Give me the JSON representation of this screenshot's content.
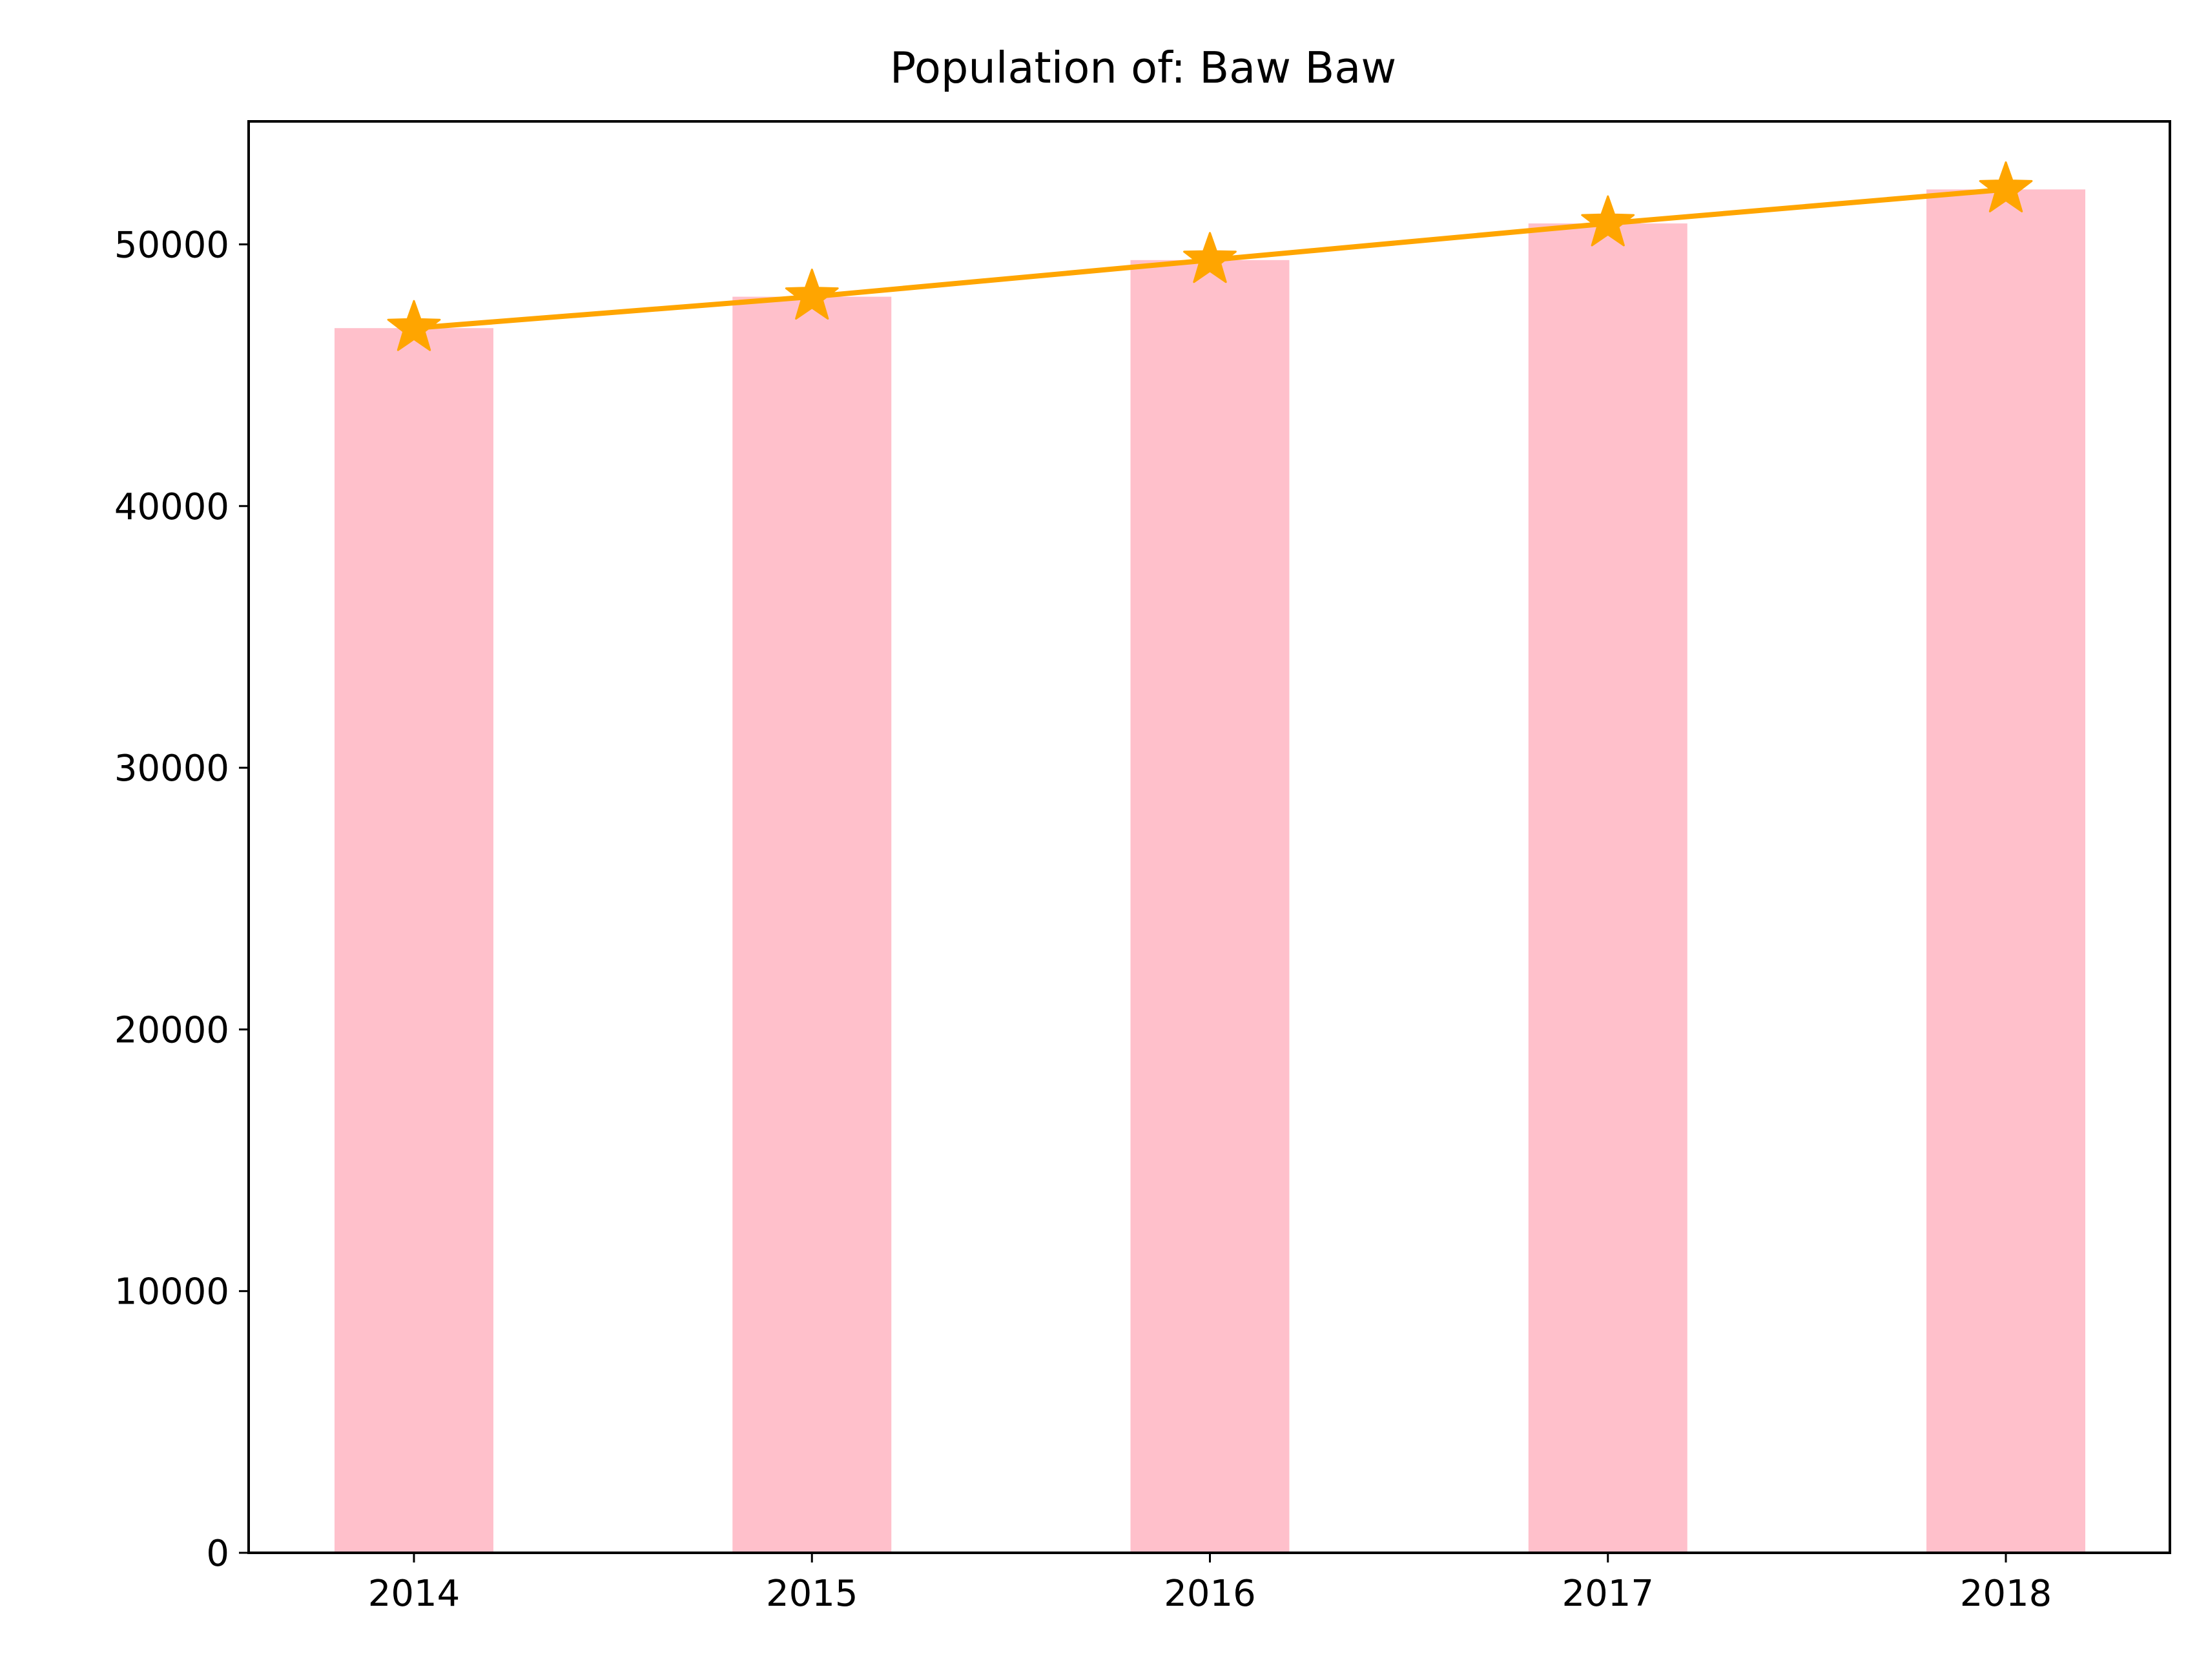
{
  "chart_data": {
    "type": "bar",
    "title": "Population of: Baw Baw",
    "xlabel": "",
    "ylabel": "",
    "categories": [
      "2014",
      "2015",
      "2016",
      "2017",
      "2018"
    ],
    "series": [
      {
        "kind": "bar",
        "values": [
          46800,
          48000,
          49400,
          50800,
          52100
        ],
        "color": "#ffc0cb"
      },
      {
        "kind": "line",
        "marker": "star",
        "values": [
          46800,
          48000,
          49400,
          50800,
          52100
        ],
        "color": "#ffa500"
      }
    ],
    "ylim": [
      0,
      54700
    ],
    "yticks": [
      0,
      10000,
      20000,
      30000,
      40000,
      50000
    ],
    "ytick_labels": [
      "0",
      "10000",
      "20000",
      "30000",
      "40000",
      "50000"
    ],
    "grid": false,
    "legend": "none"
  }
}
